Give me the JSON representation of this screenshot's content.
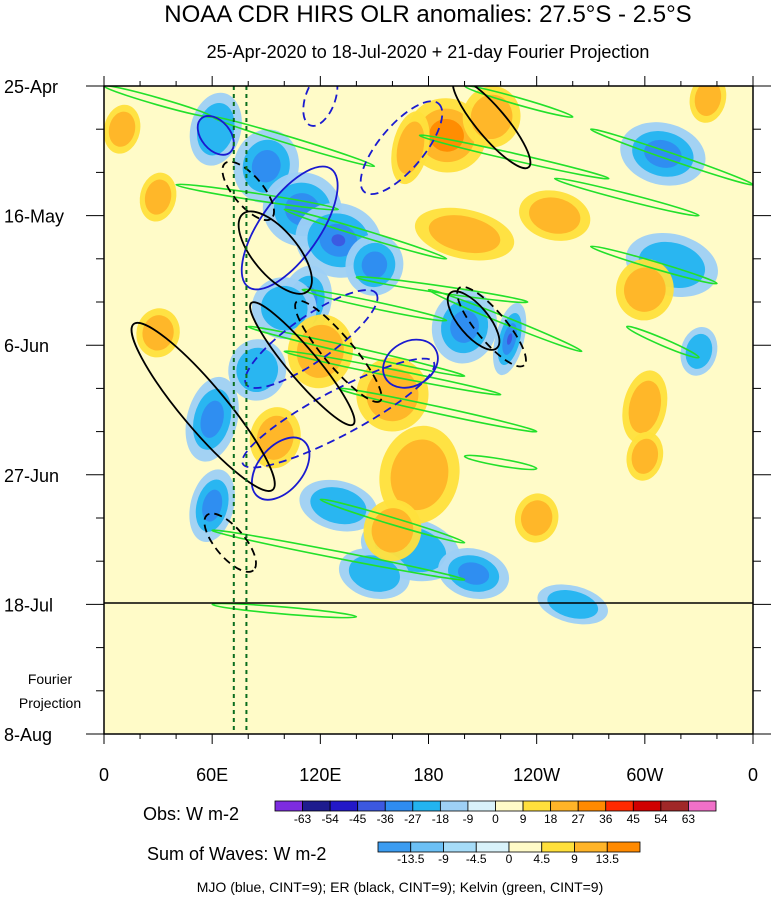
{
  "chart_data": {
    "type": "heatmap",
    "title": "NOAA CDR HIRS OLR anomalies: 27.5°S - 2.5°S",
    "subtitle": "25-Apr-2020 to 18-Jul-2020 + 21-day Fourier Projection",
    "x_ticks": [
      {
        "lon": 0,
        "label": "0"
      },
      {
        "lon": 60,
        "label": "60E"
      },
      {
        "lon": 120,
        "label": "120E"
      },
      {
        "lon": 180,
        "label": "180"
      },
      {
        "lon": 240,
        "label": "120W"
      },
      {
        "lon": 300,
        "label": "60W"
      },
      {
        "lon": 360,
        "label": "0"
      }
    ],
    "x_range": [
      0,
      360
    ],
    "y_ticks": [
      {
        "day": 0,
        "label": "25-Apr"
      },
      {
        "day": 21,
        "label": "16-May"
      },
      {
        "day": 42,
        "label": "6-Jun"
      },
      {
        "day": 63,
        "label": "27-Jun"
      },
      {
        "day": 84,
        "label": "18-Jul"
      },
      {
        "day": 105,
        "label": "8-Aug"
      }
    ],
    "y_range_days": [
      0,
      105
    ],
    "observation_end_day": 84,
    "projection_label_lines": [
      "Fourier",
      "Projection"
    ],
    "reference_longitudes": [
      72,
      79
    ],
    "obs_colorbar": {
      "label": "Obs: W m-2",
      "levels": [
        "-63",
        "-54",
        "-45",
        "-36",
        "-27",
        "-18",
        "-9",
        "0",
        "9",
        "18",
        "27",
        "36",
        "45",
        "54",
        "63"
      ],
      "colors": [
        "#7d2ce0",
        "#1e1c8e",
        "#2318c8",
        "#3c58e0",
        "#2f8cf0",
        "#23b4f0",
        "#9ed0f5",
        "#d9f2fa",
        "#fffbc8",
        "#ffe03c",
        "#ffb428",
        "#ff8a00",
        "#ff2a00",
        "#d00000",
        "#a02828",
        "#f070c8"
      ]
    },
    "wave_colorbar": {
      "label": "Sum of Waves: W m-2",
      "levels": [
        "-13.5",
        "-9",
        "-4.5",
        "0",
        "4.5",
        "9",
        "13.5"
      ],
      "colors": [
        "#3c9cf0",
        "#6cc0f5",
        "#a6dcf8",
        "#d9f2fa",
        "#fffbc8",
        "#ffe03c",
        "#ffb428",
        "#ff8a00"
      ]
    },
    "footer": "MJO (blue, CINT=9); ER (black, CINT=9); Kelvin (green, CINT=9)",
    "anomaly_features": [
      {
        "kind": "neg",
        "lon": 62,
        "day": 7,
        "a": 14,
        "b": 6,
        "mag": 1
      },
      {
        "kind": "neg",
        "lon": 90,
        "day": 13,
        "a": 18,
        "b": 6,
        "mag": 2
      },
      {
        "kind": "neg",
        "lon": 110,
        "day": 20,
        "a": 22,
        "b": 6,
        "mag": 2
      },
      {
        "kind": "neg",
        "lon": 130,
        "day": 25,
        "a": 24,
        "b": 6,
        "mag": 3
      },
      {
        "kind": "neg",
        "lon": 150,
        "day": 29,
        "a": 16,
        "b": 5,
        "mag": 2
      },
      {
        "kind": "neg",
        "lon": 200,
        "day": 39,
        "a": 18,
        "b": 6,
        "mag": 2
      },
      {
        "kind": "neg",
        "lon": 225,
        "day": 41,
        "a": 8,
        "b": 6,
        "mag": 3
      },
      {
        "kind": "neg",
        "lon": 60,
        "day": 54,
        "a": 14,
        "b": 7,
        "mag": 2
      },
      {
        "kind": "neg",
        "lon": 112,
        "day": 35,
        "a": 14,
        "b": 6,
        "mag": 2
      },
      {
        "kind": "neg",
        "lon": 85,
        "day": 46,
        "a": 16,
        "b": 5,
        "mag": 1
      },
      {
        "kind": "neg",
        "lon": 60,
        "day": 68,
        "a": 12,
        "b": 6,
        "mag": 2
      },
      {
        "kind": "neg",
        "lon": 130,
        "day": 68,
        "a": 22,
        "b": 4,
        "mag": 1
      },
      {
        "kind": "neg",
        "lon": 170,
        "day": 75,
        "a": 28,
        "b": 5,
        "mag": 1
      },
      {
        "kind": "neg",
        "lon": 205,
        "day": 79,
        "a": 20,
        "b": 4,
        "mag": 2
      },
      {
        "kind": "neg",
        "lon": 150,
        "day": 79,
        "a": 20,
        "b": 4,
        "mag": 1
      },
      {
        "kind": "neg",
        "lon": 310,
        "day": 11,
        "a": 24,
        "b": 5,
        "mag": 2
      },
      {
        "kind": "neg",
        "lon": 315,
        "day": 29,
        "a": 26,
        "b": 5,
        "mag": 1
      },
      {
        "kind": "neg",
        "lon": 100,
        "day": 36,
        "a": 18,
        "b": 5,
        "mag": 1
      },
      {
        "kind": "neg",
        "lon": 330,
        "day": 43,
        "a": 10,
        "b": 4,
        "mag": 1
      },
      {
        "kind": "neg",
        "lon": 260,
        "day": 84,
        "a": 20,
        "b": 3,
        "mag": 1
      },
      {
        "kind": "pos",
        "lon": 190,
        "day": 8,
        "a": 22,
        "b": 6,
        "mag": 2
      },
      {
        "kind": "pos",
        "lon": 215,
        "day": 5,
        "a": 16,
        "b": 5,
        "mag": 1
      },
      {
        "kind": "pos",
        "lon": 170,
        "day": 10,
        "a": 10,
        "b": 6,
        "mag": 1
      },
      {
        "kind": "pos",
        "lon": 200,
        "day": 24,
        "a": 28,
        "b": 4,
        "mag": 1
      },
      {
        "kind": "pos",
        "lon": 250,
        "day": 21,
        "a": 20,
        "b": 4,
        "mag": 1
      },
      {
        "kind": "pos",
        "lon": 300,
        "day": 33,
        "a": 16,
        "b": 5,
        "mag": 1
      },
      {
        "kind": "pos",
        "lon": 120,
        "day": 43,
        "a": 18,
        "b": 6,
        "mag": 1
      },
      {
        "kind": "pos",
        "lon": 160,
        "day": 50,
        "a": 20,
        "b": 6,
        "mag": 1
      },
      {
        "kind": "pos",
        "lon": 175,
        "day": 63,
        "a": 22,
        "b": 8,
        "mag": 1
      },
      {
        "kind": "pos",
        "lon": 160,
        "day": 72,
        "a": 16,
        "b": 5,
        "mag": 1
      },
      {
        "kind": "pos",
        "lon": 240,
        "day": 70,
        "a": 12,
        "b": 4,
        "mag": 1
      },
      {
        "kind": "pos",
        "lon": 300,
        "day": 52,
        "a": 12,
        "b": 6,
        "mag": 1
      },
      {
        "kind": "pos",
        "lon": 300,
        "day": 60,
        "a": 10,
        "b": 4,
        "mag": 1
      },
      {
        "kind": "pos",
        "lon": 10,
        "day": 7,
        "a": 10,
        "b": 4,
        "mag": 1
      },
      {
        "kind": "pos",
        "lon": 30,
        "day": 40,
        "a": 12,
        "b": 4,
        "mag": 1
      },
      {
        "kind": "pos",
        "lon": 335,
        "day": 2,
        "a": 10,
        "b": 4,
        "mag": 1
      },
      {
        "kind": "pos",
        "lon": 95,
        "day": 57,
        "a": 14,
        "b": 5,
        "mag": 1
      },
      {
        "kind": "pos",
        "lon": 30,
        "day": 18,
        "a": 10,
        "b": 4,
        "mag": 1
      }
    ],
    "wave_contours": {
      "kelvin": [
        [
          [
            0,
            0
          ],
          [
            60,
            5
          ]
        ],
        [
          [
            40,
            16
          ],
          [
            130,
            20
          ]
        ],
        [
          [
            60,
            5
          ],
          [
            150,
            13
          ]
        ],
        [
          [
            100,
            20
          ],
          [
            190,
            28
          ]
        ],
        [
          [
            110,
            33
          ],
          [
            190,
            38
          ]
        ],
        [
          [
            140,
            31
          ],
          [
            235,
            35
          ]
        ],
        [
          [
            180,
            33
          ],
          [
            265,
            43
          ]
        ],
        [
          [
            175,
            8
          ],
          [
            280,
            15
          ]
        ],
        [
          [
            270,
            7
          ],
          [
            360,
            16
          ]
        ],
        [
          [
            250,
            15
          ],
          [
            330,
            21
          ]
        ],
        [
          [
            270,
            26
          ],
          [
            340,
            32
          ]
        ],
        [
          [
            80,
            39
          ],
          [
            200,
            47
          ]
        ],
        [
          [
            100,
            43
          ],
          [
            220,
            50
          ]
        ],
        [
          [
            130,
            49
          ],
          [
            240,
            56
          ]
        ],
        [
          [
            120,
            67
          ],
          [
            200,
            74
          ]
        ],
        [
          [
            60,
            72
          ],
          [
            200,
            80
          ]
        ],
        [
          [
            60,
            84
          ],
          [
            140,
            86
          ]
        ],
        [
          [
            200,
            60
          ],
          [
            240,
            62
          ]
        ],
        [
          [
            290,
            39
          ],
          [
            330,
            44
          ]
        ],
        [
          [
            200,
            0
          ],
          [
            260,
            5
          ]
        ]
      ],
      "mjo": [
        {
          "lon": 62,
          "day": 8,
          "rx": 4,
          "ry": 3,
          "rot": -40,
          "dash": false
        },
        {
          "lon": 103,
          "day": 23,
          "rx": 20,
          "ry": 4,
          "rot": -55,
          "dash": false
        },
        {
          "lon": 165,
          "day": 10,
          "rx": 16,
          "ry": 3,
          "rot": -50,
          "dash": true
        },
        {
          "lon": 170,
          "day": 45,
          "rx": 8,
          "ry": 3,
          "rot": -30,
          "dash": false
        },
        {
          "lon": 98,
          "day": 62,
          "rx": 10,
          "ry": 3,
          "rot": -50,
          "dash": false
        },
        {
          "lon": 130,
          "day": 53,
          "rx": 30,
          "ry": 3,
          "rot": -28,
          "dash": true
        },
        {
          "lon": 115,
          "day": 41,
          "rx": 22,
          "ry": 3,
          "rot": -35,
          "dash": true
        },
        {
          "lon": 120,
          "day": 2,
          "rx": 8,
          "ry": 2,
          "rot": -70,
          "dash": true
        }
      ],
      "er": [
        {
          "lon": 55,
          "day": 52,
          "rx": 30,
          "ry": 3,
          "rot": 50,
          "dash": false
        },
        {
          "lon": 95,
          "day": 27,
          "rx": 14,
          "ry": 3,
          "rot": 50,
          "dash": false
        },
        {
          "lon": 80,
          "day": 17,
          "rx": 10,
          "ry": 2,
          "rot": 50,
          "dash": true
        },
        {
          "lon": 205,
          "day": 38,
          "rx": 10,
          "ry": 2,
          "rot": 50,
          "dash": false
        },
        {
          "lon": 215,
          "day": 39,
          "rx": 14,
          "ry": 2,
          "rot": 50,
          "dash": true
        },
        {
          "lon": 215,
          "day": 6,
          "rx": 16,
          "ry": 2,
          "rot": 50,
          "dash": false
        },
        {
          "lon": 110,
          "day": 45,
          "rx": 22,
          "ry": 2,
          "rot": 50,
          "dash": false
        },
        {
          "lon": 130,
          "day": 43,
          "rx": 18,
          "ry": 2,
          "rot": 50,
          "dash": true
        },
        {
          "lon": 70,
          "day": 74,
          "rx": 10,
          "ry": 2,
          "rot": 50,
          "dash": true
        }
      ]
    }
  }
}
